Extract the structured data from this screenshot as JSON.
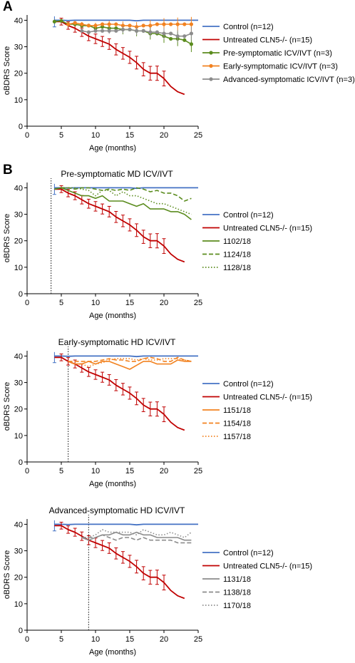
{
  "figure": {
    "panel_a_letter": "A",
    "panel_b_letter": "B",
    "ylabel": "oBDRS Score",
    "xlabel": "Age (months)",
    "x_ticks": [
      "0",
      "5",
      "10",
      "15",
      "20",
      "25"
    ],
    "y_ticks": [
      "0",
      "10",
      "20",
      "30",
      "40"
    ]
  },
  "colors": {
    "control": "#4472C4",
    "untreated": "#C00000",
    "pre": "#5B8C1E",
    "early": "#F28220",
    "advanced": "#8C8C8C"
  },
  "chart_data": [
    {
      "type": "line",
      "panel": "A",
      "title": "",
      "xlabel": "Age (months)",
      "ylabel": "oBDRS Score",
      "xlim": [
        0,
        25
      ],
      "ylim": [
        0,
        42
      ],
      "legend_position": "right",
      "series": [
        {
          "name": "Control (n=12)",
          "key": "control",
          "style": "solid",
          "markers": false,
          "x": [
            4,
            5,
            6,
            7,
            8,
            9,
            10,
            11,
            12,
            13,
            14,
            15,
            16,
            17,
            18,
            19,
            20,
            21,
            22,
            23,
            24,
            25
          ],
          "y": [
            40,
            40,
            39.9,
            40,
            40,
            40,
            40,
            40,
            40,
            40,
            40,
            40,
            39.8,
            40,
            40,
            40,
            40,
            40,
            40,
            40,
            40,
            40
          ]
        },
        {
          "name": "Untreated CLN5-/- (n=15)",
          "key": "untreated",
          "style": "solid",
          "markers": false,
          "x": [
            4,
            5,
            6,
            7,
            8,
            9,
            10,
            11,
            12,
            13,
            14,
            15,
            16,
            17,
            18,
            19,
            20,
            21,
            22,
            23
          ],
          "y": [
            39.5,
            39.5,
            38,
            37,
            35.5,
            34,
            33,
            32,
            31,
            29,
            27.5,
            26,
            24,
            21.5,
            20,
            20,
            18,
            15,
            13,
            12
          ]
        },
        {
          "name": "Pre-symptomatic ICV/IVT (n=3)",
          "key": "pre",
          "style": "solid",
          "markers": true,
          "x": [
            4,
            5,
            6,
            7,
            8,
            9,
            10,
            11,
            12,
            13,
            14,
            15,
            16,
            17,
            18,
            19,
            20,
            21,
            22,
            23,
            24
          ],
          "y": [
            39.5,
            39.8,
            38.5,
            38.5,
            38,
            38,
            37,
            37.5,
            37,
            37,
            36.5,
            36.5,
            36,
            36,
            35,
            35,
            34,
            33,
            33,
            32.5,
            31
          ]
        },
        {
          "name": "Early-symptomatic ICV/IVT (n=3)",
          "key": "early",
          "style": "solid",
          "markers": true,
          "x": [
            6,
            7,
            8,
            9,
            10,
            11,
            12,
            13,
            14,
            15,
            16,
            17,
            18,
            19,
            20,
            21,
            22,
            23,
            24
          ],
          "y": [
            38.5,
            39,
            38.5,
            38,
            38,
            38.5,
            38.5,
            38.5,
            38,
            38,
            37.5,
            38,
            38,
            38.5,
            38.5,
            38.5,
            38.5,
            38.5,
            38.5
          ]
        },
        {
          "name": "Advanced-symptomatic ICV/IVT (n=3)",
          "key": "advanced",
          "style": "solid",
          "markers": true,
          "x": [
            8,
            9,
            10,
            11,
            12,
            13,
            14,
            15,
            16,
            17,
            18,
            19,
            20,
            21,
            22,
            23,
            24
          ],
          "y": [
            36,
            35.5,
            36,
            36,
            36,
            36,
            36.5,
            36.5,
            36,
            36,
            35.5,
            35.5,
            35,
            35,
            34,
            34,
            35
          ]
        }
      ]
    },
    {
      "type": "line",
      "panel": "B1",
      "title": "Pre-symptomatic MD ICV/IVT",
      "xlabel": "Age (months)",
      "ylabel": "oBDRS Score",
      "xlim": [
        0,
        25
      ],
      "ylim": [
        0,
        42
      ],
      "treatment_age": 3.5,
      "legend_position": "right",
      "series": [
        {
          "name": "Control (n=12)",
          "key": "control",
          "style": "solid",
          "x": [
            4,
            5,
            6,
            7,
            8,
            9,
            10,
            11,
            12,
            13,
            14,
            15,
            16,
            17,
            18,
            19,
            20,
            21,
            22,
            23,
            24,
            25
          ],
          "y": [
            40,
            40,
            39.9,
            40,
            40,
            40,
            40,
            40,
            40,
            40,
            40,
            40,
            39.8,
            40,
            40,
            40,
            40,
            40,
            40,
            40,
            40,
            40
          ]
        },
        {
          "name": "Untreated CLN5-/- (n=15)",
          "key": "untreated",
          "style": "solid",
          "x": [
            4,
            5,
            6,
            7,
            8,
            9,
            10,
            11,
            12,
            13,
            14,
            15,
            16,
            17,
            18,
            19,
            20,
            21,
            22,
            23
          ],
          "y": [
            39.5,
            39.5,
            38,
            37,
            35.5,
            34,
            33,
            32,
            31,
            29,
            27.5,
            26,
            24,
            21.5,
            20,
            20,
            18,
            15,
            13,
            12
          ]
        },
        {
          "name": "1102/18",
          "key": "pre",
          "style": "solid",
          "x": [
            4,
            5,
            6,
            7,
            8,
            9,
            10,
            11,
            12,
            13,
            14,
            15,
            16,
            17,
            18,
            19,
            20,
            21,
            22,
            23,
            24
          ],
          "y": [
            39.5,
            40,
            39,
            38,
            37,
            37,
            36,
            37,
            35,
            35,
            35,
            34,
            33,
            34,
            32,
            32,
            32,
            31,
            31,
            30,
            28
          ]
        },
        {
          "name": "1124/18",
          "key": "pre",
          "style": "dashed",
          "x": [
            4,
            5,
            6,
            7,
            8,
            9,
            10,
            11,
            12,
            13,
            14,
            15,
            16,
            17,
            18,
            19,
            20,
            21,
            22,
            23,
            24
          ],
          "y": [
            39.5,
            40,
            40,
            39.5,
            40,
            40,
            39.5,
            39,
            39.5,
            39,
            39.5,
            39,
            40,
            39.5,
            38.5,
            39,
            38,
            38,
            37,
            35,
            36
          ]
        },
        {
          "name": "1128/18",
          "key": "pre",
          "style": "dotted",
          "x": [
            4,
            5,
            6,
            7,
            8,
            9,
            10,
            11,
            12,
            13,
            14,
            15,
            16,
            17,
            18,
            19,
            20,
            21,
            22,
            23,
            24
          ],
          "y": [
            39.5,
            40,
            40,
            40,
            39.5,
            39,
            37,
            39,
            39,
            37,
            38.5,
            37,
            37,
            36,
            35,
            34,
            34,
            33,
            32,
            31,
            30
          ]
        }
      ]
    },
    {
      "type": "line",
      "panel": "B2",
      "title": "Early-symptomatic HD ICV/IVT",
      "xlabel": "Age (months)",
      "ylabel": "oBDRS Score",
      "xlim": [
        0,
        25
      ],
      "ylim": [
        0,
        42
      ],
      "treatment_age": 6,
      "legend_position": "right",
      "series": [
        {
          "name": "Control (n=12)",
          "key": "control",
          "style": "solid",
          "x": [
            4,
            5,
            6,
            7,
            8,
            9,
            10,
            11,
            12,
            13,
            14,
            15,
            16,
            17,
            18,
            19,
            20,
            21,
            22,
            23,
            24,
            25
          ],
          "y": [
            40,
            40,
            39.9,
            40,
            40,
            40,
            40,
            40,
            40,
            40,
            40,
            40,
            39.8,
            40,
            40,
            40,
            40,
            40,
            40,
            40,
            40,
            40
          ]
        },
        {
          "name": "Untreated CLN5-/- (n=15)",
          "key": "untreated",
          "style": "solid",
          "x": [
            4,
            5,
            6,
            7,
            8,
            9,
            10,
            11,
            12,
            13,
            14,
            15,
            16,
            17,
            18,
            19,
            20,
            21,
            22,
            23
          ],
          "y": [
            39.5,
            39.5,
            38,
            37,
            35.5,
            34,
            33,
            32,
            31,
            29,
            27.5,
            26,
            24,
            21.5,
            20,
            20,
            18,
            15,
            13,
            12
          ]
        },
        {
          "name": "1151/18",
          "key": "early",
          "style": "solid",
          "x": [
            6,
            7,
            8,
            9,
            10,
            11,
            12,
            13,
            14,
            15,
            16,
            17,
            18,
            19,
            20,
            21,
            22,
            23,
            24
          ],
          "y": [
            38,
            37,
            37,
            38,
            37,
            38,
            38,
            37,
            36,
            35,
            36.5,
            38,
            38,
            37,
            37,
            37,
            38.5,
            38,
            38
          ]
        },
        {
          "name": "1154/18",
          "key": "early",
          "style": "dashed",
          "x": [
            6,
            7,
            8,
            9,
            10,
            11,
            12,
            13,
            14,
            15,
            16,
            17,
            18,
            19,
            20,
            21,
            22,
            23,
            24
          ],
          "y": [
            38,
            38,
            38,
            38,
            38,
            38.5,
            39,
            38.5,
            38.5,
            38,
            38,
            39,
            39.5,
            39,
            38,
            38,
            39.5,
            38.5,
            38
          ]
        },
        {
          "name": "1157/18",
          "key": "early",
          "style": "dotted",
          "x": [
            6,
            7,
            8,
            9,
            10,
            11,
            12,
            13,
            14,
            15,
            16,
            17,
            18,
            19,
            20,
            21,
            22,
            23,
            24
          ],
          "y": [
            38,
            37,
            37,
            36,
            37,
            37.5,
            38.5,
            39,
            39,
            39,
            38.5,
            39,
            38.5,
            38.5,
            39,
            39,
            39,
            38.5,
            38
          ]
        }
      ]
    },
    {
      "type": "line",
      "panel": "B3",
      "title": "Advanced-symptomatic HD ICV/IVT",
      "xlabel": "Age (months)",
      "ylabel": "oBDRS Score",
      "xlim": [
        0,
        25
      ],
      "ylim": [
        0,
        42
      ],
      "treatment_age": 9,
      "legend_position": "right",
      "series": [
        {
          "name": "Control (n=12)",
          "key": "control",
          "style": "solid",
          "x": [
            4,
            5,
            6,
            7,
            8,
            9,
            10,
            11,
            12,
            13,
            14,
            15,
            16,
            17,
            18,
            19,
            20,
            21,
            22,
            23,
            24,
            25
          ],
          "y": [
            40,
            40,
            39.9,
            40,
            40,
            40,
            40,
            40,
            40,
            40,
            40,
            40,
            39.8,
            40,
            40,
            40,
            40,
            40,
            40,
            40,
            40,
            40
          ]
        },
        {
          "name": "Untreated CLN5-/- (n=15)",
          "key": "untreated",
          "style": "solid",
          "x": [
            4,
            5,
            6,
            7,
            8,
            9,
            10,
            11,
            12,
            13,
            14,
            15,
            16,
            17,
            18,
            19,
            20,
            21,
            22,
            23
          ],
          "y": [
            39.5,
            39.5,
            38,
            37,
            35.5,
            34,
            33,
            32,
            31,
            29,
            27.5,
            26,
            24,
            21.5,
            20,
            20,
            18,
            15,
            13,
            12
          ]
        },
        {
          "name": "1131/18",
          "key": "advanced",
          "style": "solid",
          "x": [
            8,
            9,
            10,
            11,
            12,
            13,
            14,
            15,
            16,
            17,
            18,
            19,
            20,
            21,
            22,
            23,
            24
          ],
          "y": [
            35,
            34,
            35,
            36,
            36,
            37,
            36,
            36,
            37,
            36,
            36,
            35,
            35,
            35,
            35,
            34,
            34
          ]
        },
        {
          "name": "1138/18",
          "key": "advanced",
          "style": "dashed",
          "x": [
            8,
            9,
            10,
            11,
            12,
            13,
            14,
            15,
            16,
            17,
            18,
            19,
            20,
            21,
            22,
            23,
            24
          ],
          "y": [
            35,
            35,
            35,
            36,
            35,
            34,
            35,
            35,
            34,
            35,
            34,
            34,
            34,
            34,
            33,
            33,
            33
          ]
        },
        {
          "name": "1170/18",
          "key": "advanced",
          "style": "dotted",
          "x": [
            8,
            9,
            10,
            11,
            12,
            13,
            14,
            15,
            16,
            17,
            18,
            19,
            20,
            21,
            22,
            23,
            24
          ],
          "y": [
            35,
            35,
            36,
            38,
            37,
            37,
            37,
            37,
            36,
            38,
            37,
            36,
            36,
            37,
            36,
            35,
            37
          ]
        }
      ]
    }
  ]
}
